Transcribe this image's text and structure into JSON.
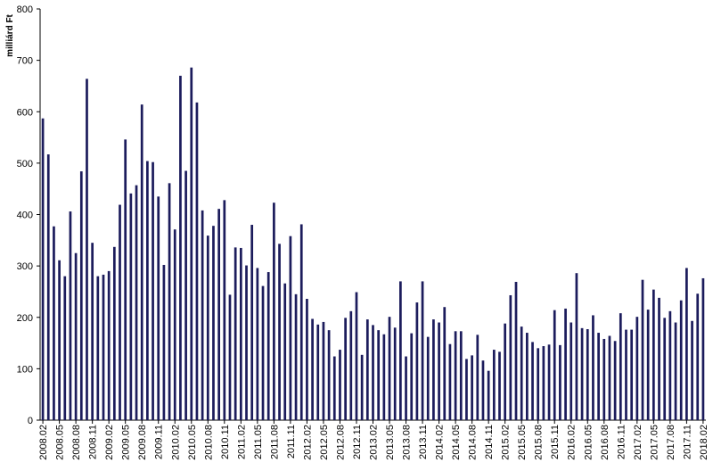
{
  "chart_data": {
    "type": "bar",
    "y_label": "milliárd Ft",
    "color": "#1c1c5c",
    "categories": [
      "2008.02",
      null,
      null,
      "2008.05",
      null,
      null,
      "2008.08",
      null,
      null,
      "2008.11",
      null,
      null,
      "2009.02",
      null,
      null,
      "2009.05",
      null,
      null,
      "2009.08",
      null,
      null,
      "2009.11",
      null,
      null,
      "2010.02",
      null,
      null,
      "2010.05",
      null,
      null,
      "2010.08",
      null,
      null,
      "2010.11",
      null,
      null,
      "2011.02",
      null,
      null,
      "2011.05",
      null,
      null,
      "2011.08",
      null,
      null,
      "2011.11",
      null,
      null,
      "2012.02",
      null,
      null,
      "2012.05",
      null,
      null,
      "2012.08",
      null,
      null,
      "2012.11",
      null,
      null,
      "2013.02",
      null,
      null,
      "2013.05",
      null,
      null,
      "2013.08",
      null,
      null,
      "2013.11",
      null,
      null,
      "2014.02",
      null,
      null,
      "2014.05",
      null,
      null,
      "2014.08",
      null,
      null,
      "2014.11",
      null,
      null,
      "2015.02",
      null,
      null,
      "2015.05",
      null,
      null,
      "2015.08",
      null,
      null,
      "2015.11",
      null,
      null,
      "2016.02",
      null,
      null,
      "2016.05",
      null,
      null,
      "2016.08",
      null,
      null,
      "2016.11",
      null,
      null,
      "2017.02",
      null,
      null,
      "2017.05",
      null,
      null,
      "2017.08",
      null,
      null,
      "2017.11",
      null,
      null,
      "2018.02"
    ],
    "values": [
      587,
      517,
      377,
      311,
      280,
      406,
      325,
      484,
      664,
      345,
      280,
      283,
      290,
      337,
      419,
      546,
      441,
      457,
      614,
      504,
      502,
      435,
      302,
      461,
      371,
      670,
      485,
      686,
      618,
      408,
      359,
      378,
      411,
      428,
      244,
      336,
      335,
      301,
      380,
      296,
      261,
      288,
      423,
      343,
      266,
      358,
      245,
      381,
      236,
      197,
      186,
      191,
      175,
      124,
      137,
      199,
      212,
      249,
      127,
      196,
      185,
      175,
      167,
      201,
      180,
      270,
      124,
      169,
      229,
      270,
      162,
      196,
      190,
      220,
      148,
      173,
      173,
      119,
      126,
      166,
      116,
      96,
      137,
      133,
      188,
      243,
      269,
      182,
      170,
      152,
      140,
      144,
      147,
      214,
      146,
      217,
      190,
      286,
      179,
      177,
      204,
      170,
      158,
      164,
      154,
      208,
      176,
      176,
      201,
      273,
      215,
      254,
      238,
      199,
      212,
      190,
      233,
      296,
      193,
      246,
      276
    ],
    "ylim": [
      0,
      800
    ],
    "yticks": [
      0,
      100,
      200,
      300,
      400,
      500,
      600,
      700,
      800
    ],
    "grid": false
  }
}
